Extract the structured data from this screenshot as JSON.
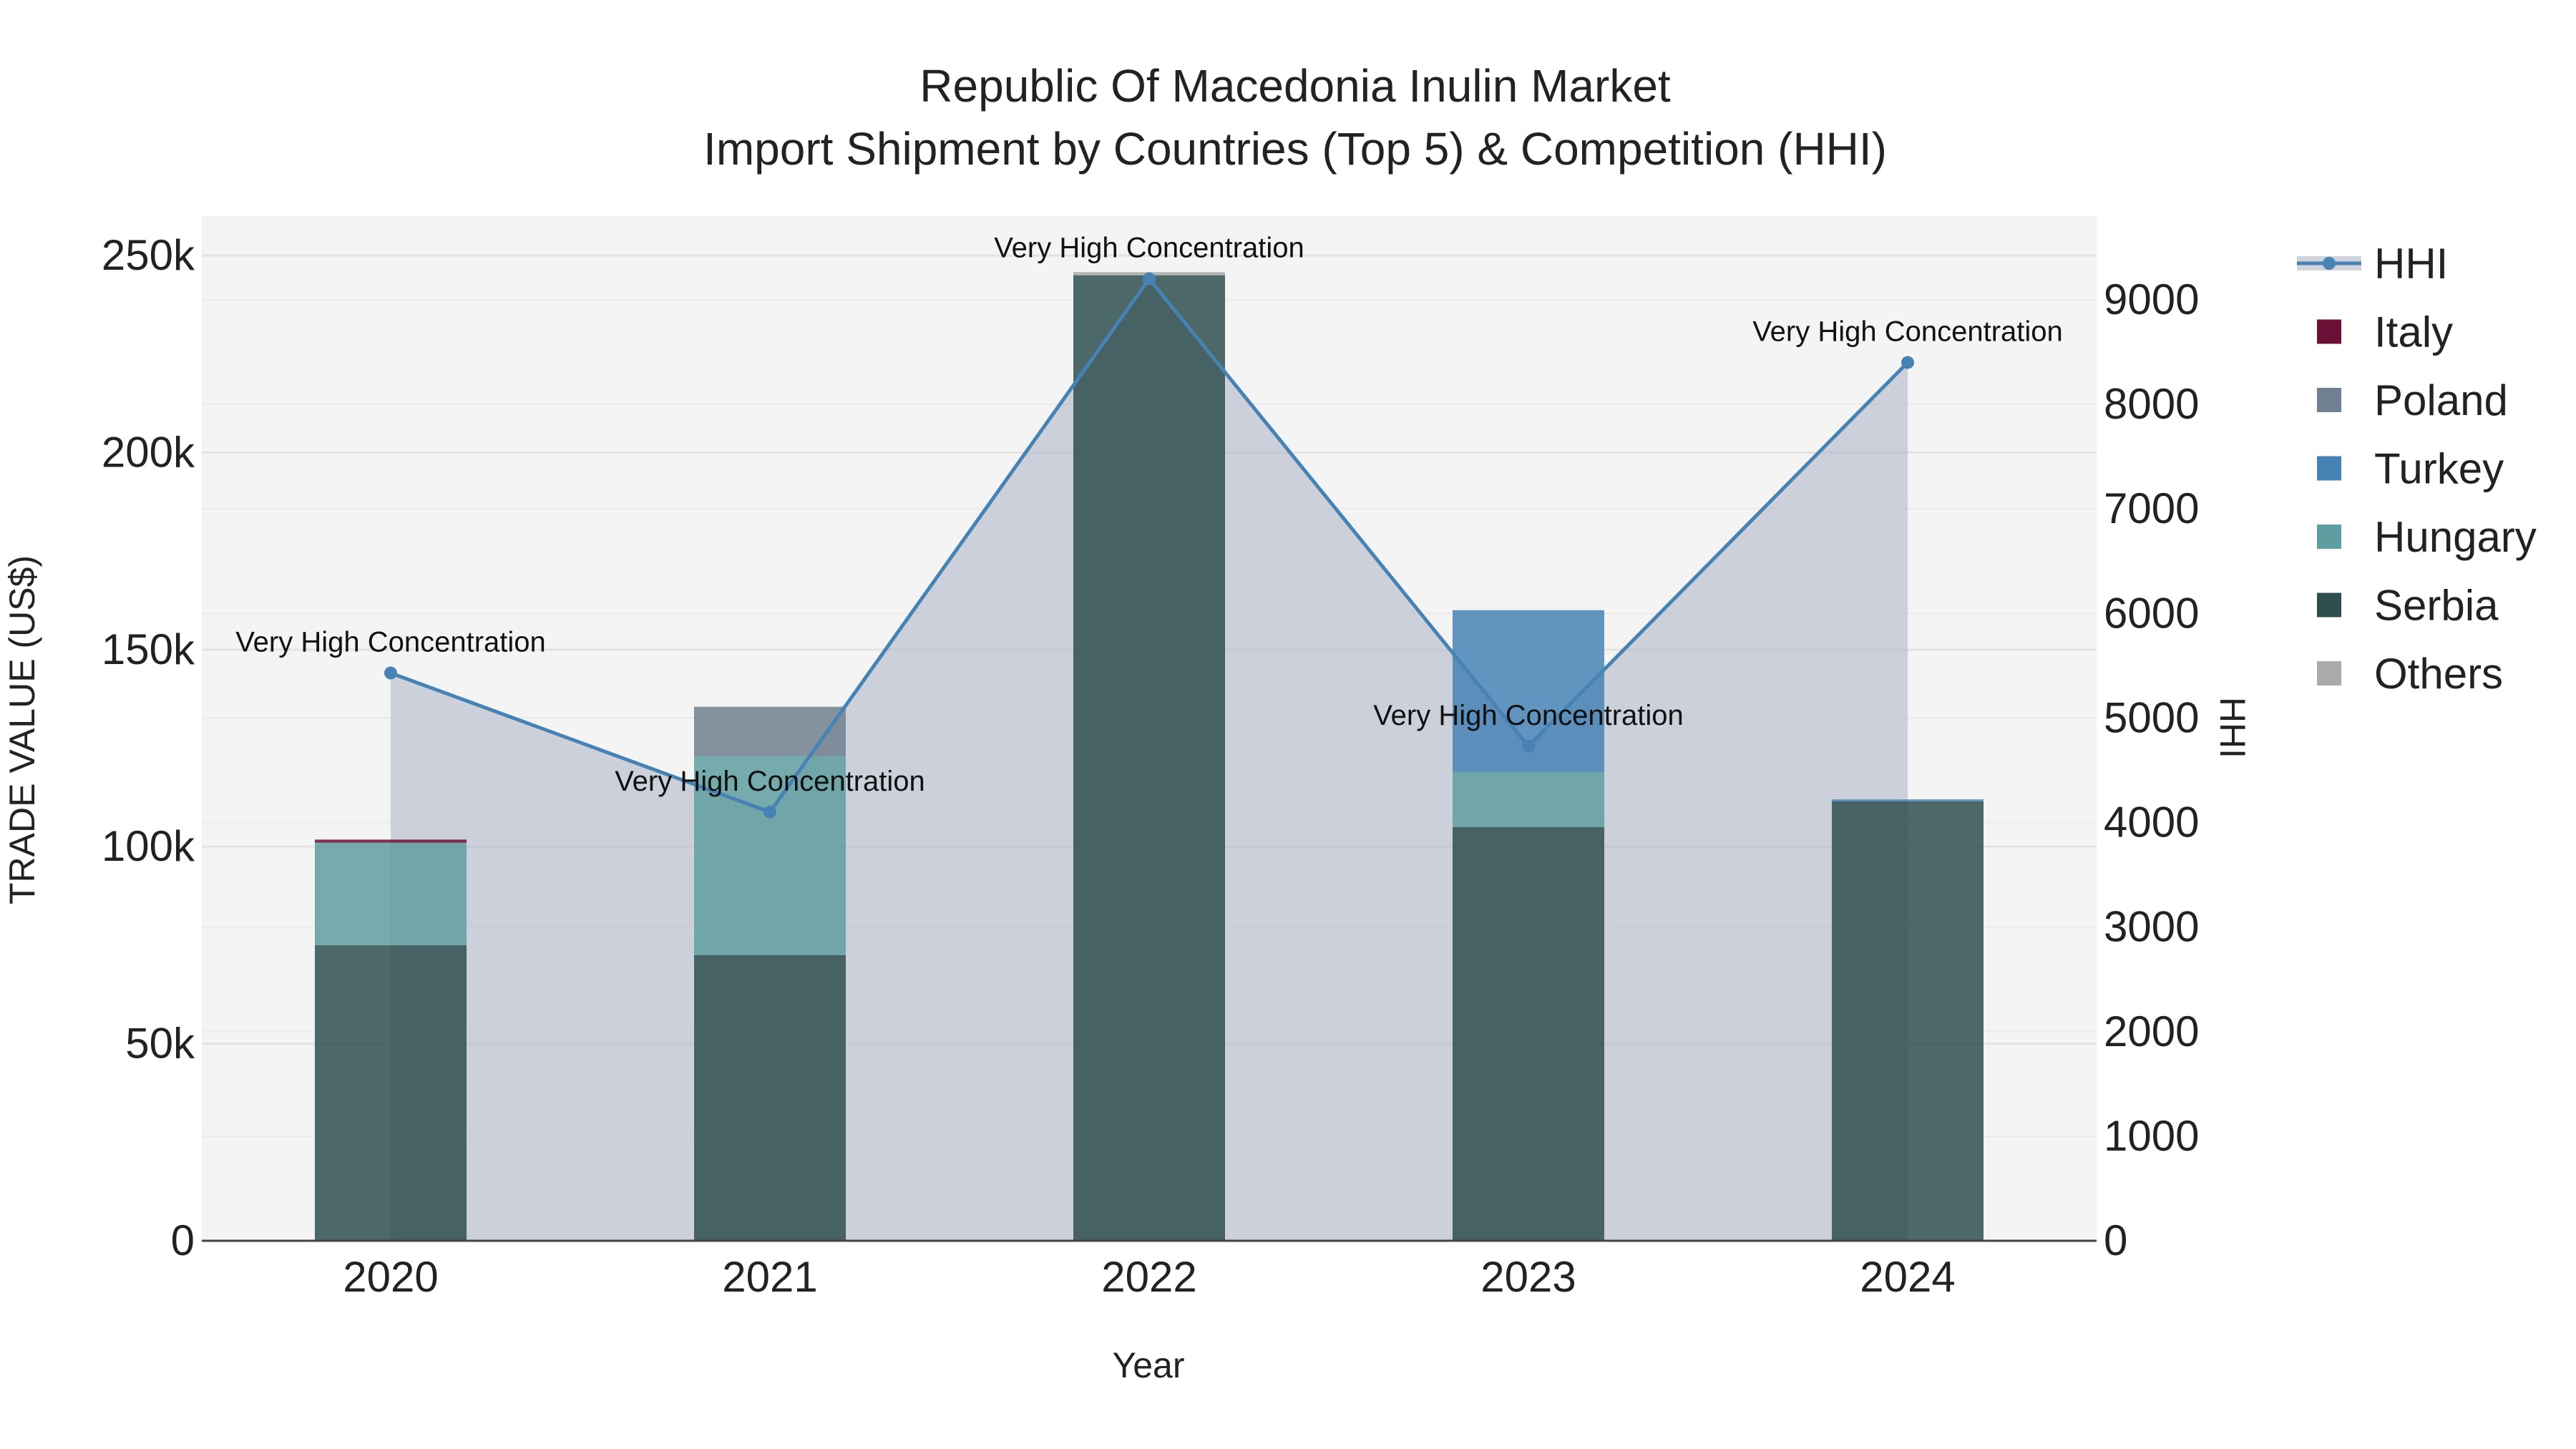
{
  "chart_data": {
    "type": "bar",
    "title": "Republic Of Macedonia Inulin Market",
    "subtitle": "Import Shipment by Countries (Top 5) & Competition (HHI)",
    "xlabel": "Year",
    "ylabel": "TRADE VALUE (US$)",
    "y2label": "HHI",
    "categories": [
      "2020",
      "2021",
      "2022",
      "2023",
      "2024"
    ],
    "ylim": [
      0,
      260000
    ],
    "y2lim": [
      0,
      9800
    ],
    "yticks": [
      0,
      50000,
      100000,
      150000,
      200000,
      250000
    ],
    "ytick_labels": [
      "0",
      "50k",
      "100k",
      "150k",
      "200k",
      "250k"
    ],
    "y2ticks": [
      0,
      1000,
      2000,
      3000,
      4000,
      5000,
      6000,
      7000,
      8000,
      9000
    ],
    "y2tick_labels": [
      "0",
      "1000",
      "2000",
      "3000",
      "4000",
      "5000",
      "6000",
      "7000",
      "8000",
      "9000"
    ],
    "series": [
      {
        "name": "Serbia",
        "color": "#2f4f4f",
        "values": [
          75000,
          72500,
          245000,
          105000,
          111500
        ]
      },
      {
        "name": "Hungary",
        "color": "#5f9ea0",
        "values": [
          26000,
          50500,
          0,
          14000,
          0
        ]
      },
      {
        "name": "Turkey",
        "color": "#4682b4",
        "values": [
          0,
          0,
          0,
          41000,
          500
        ]
      },
      {
        "name": "Poland",
        "color": "#708090",
        "values": [
          0,
          12500,
          0,
          0,
          0
        ]
      },
      {
        "name": "Italy",
        "color": "#6b1037",
        "values": [
          800,
          0,
          0,
          0,
          0
        ]
      },
      {
        "name": "Others",
        "color": "#aaaaaa",
        "values": [
          0,
          0,
          800,
          0,
          0
        ]
      }
    ],
    "hhi": {
      "name": "HHI",
      "color": "#4682b4",
      "values": [
        5430,
        4100,
        9200,
        4730,
        8400
      ],
      "annotations": [
        "Very High Concentration",
        "Very High Concentration",
        "Very High Concentration",
        "Very High Concentration",
        "Very High Concentration"
      ]
    },
    "legend_order": [
      "HHI",
      "Italy",
      "Poland",
      "Turkey",
      "Hungary",
      "Serbia",
      "Others"
    ],
    "legend_position": "right",
    "grid": true,
    "plot_background": "#f4f4f4"
  }
}
